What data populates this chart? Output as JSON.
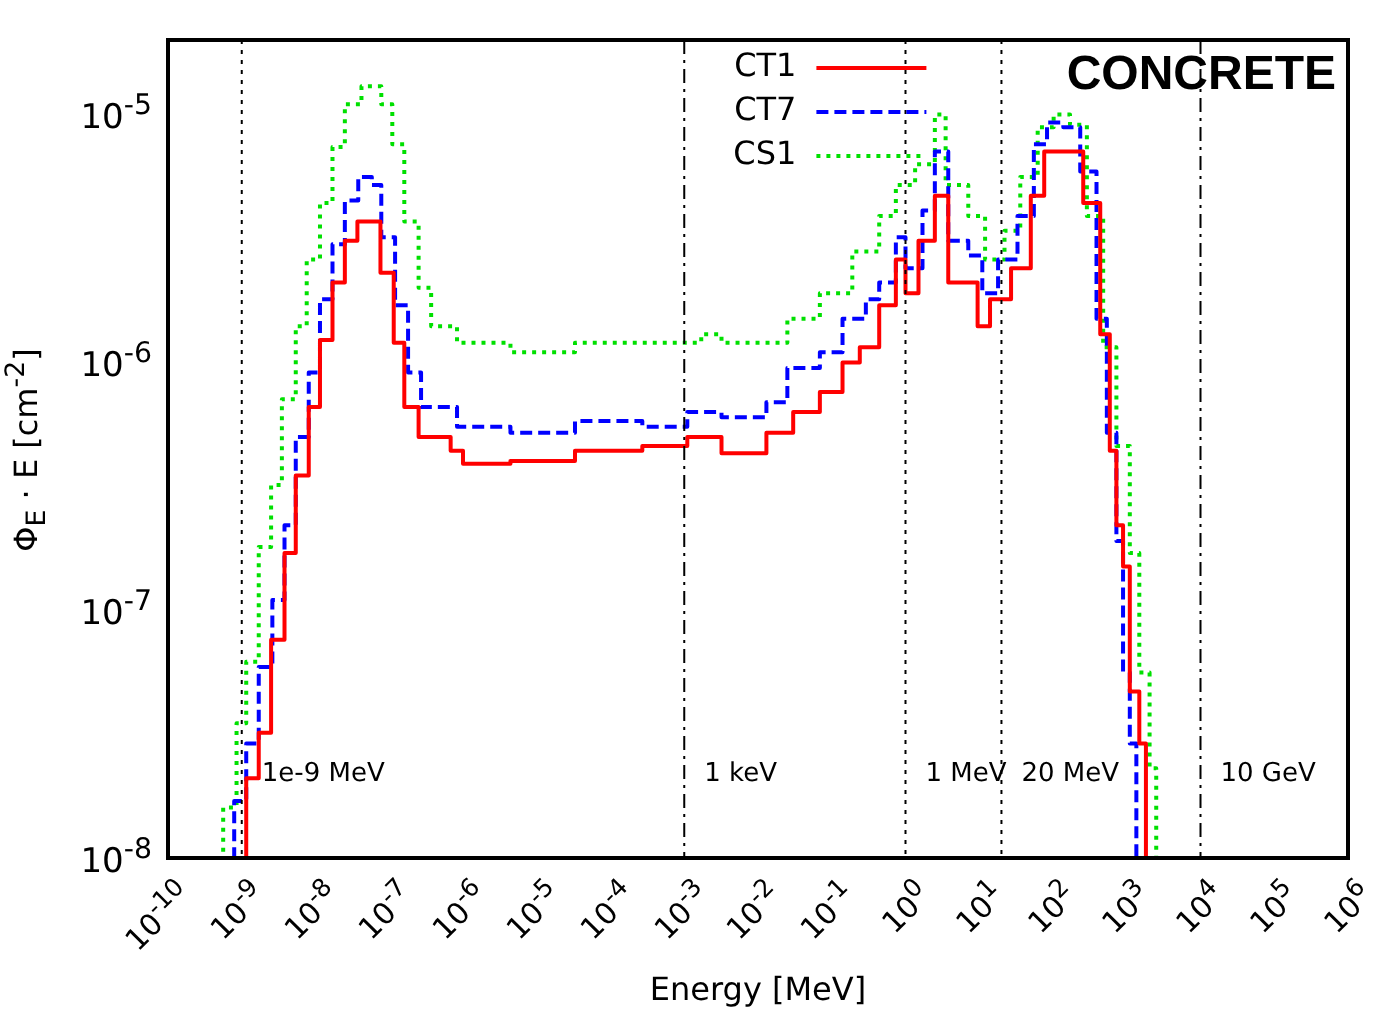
{
  "chart_data": {
    "type": "step",
    "xlabel": "Energy [MeV]",
    "ylabel": "Φ$_{E}$ · E [cm$^{-2}$]",
    "annotations": [
      "CONCRETE"
    ],
    "log": "xy",
    "grid": false,
    "legend": "top",
    "marker": "none",
    "xlim": [
      1e-10,
      1000000.0
    ],
    "ylim": [
      1e-08,
      2e-05
    ],
    "xticks": [
      {
        "value": 1e-10,
        "label": "10$^{-10}$"
      },
      {
        "value": 1e-09,
        "label": "10$^{-9}$"
      },
      {
        "value": 1e-08,
        "label": "10$^{-8}$"
      },
      {
        "value": 1e-07,
        "label": "10$^{-7}$"
      },
      {
        "value": 1e-06,
        "label": "10$^{-6}$"
      },
      {
        "value": 1e-05,
        "label": "10$^{-5}$"
      },
      {
        "value": 0.0001,
        "label": "10$^{-4}$"
      },
      {
        "value": 0.001,
        "label": "10$^{-3}$"
      },
      {
        "value": 0.01,
        "label": "10$^{-2}$"
      },
      {
        "value": 0.1,
        "label": "10$^{-1}$"
      },
      {
        "value": 1,
        "label": "10$^{0}$"
      },
      {
        "value": 10,
        "label": "10$^{1}$"
      },
      {
        "value": 100,
        "label": "10$^{2}$"
      },
      {
        "value": 1000,
        "label": "10$^{3}$"
      },
      {
        "value": 10000.0,
        "label": "10$^{4}$"
      },
      {
        "value": 100000.0,
        "label": "10$^{5}$"
      },
      {
        "value": 1000000.0,
        "label": "10$^{6}$"
      }
    ],
    "yticks": [
      {
        "value": 1e-08,
        "label": "10$^{-8}$"
      },
      {
        "value": 1e-07,
        "label": "10$^{-7}$"
      },
      {
        "value": 1e-06,
        "label": "10$^{-6}$"
      },
      {
        "value": 1e-05,
        "label": "10$^{-5}$"
      }
    ],
    "ref_lines": [
      {
        "axis": "x",
        "value": 1e-09,
        "label": "1e-9 MeV",
        "line_style": "dotted",
        "color": "#000000"
      },
      {
        "axis": "x",
        "value": 0.001,
        "label": "1 keV",
        "line_style": "dashed",
        "color": "#000000"
      },
      {
        "axis": "x",
        "value": 1,
        "label": "1 MeV",
        "line_style": "dotted",
        "color": "#000000"
      },
      {
        "axis": "x",
        "value": 20,
        "label": "20 MeV",
        "line_style": "dotted",
        "color": "#000000"
      },
      {
        "axis": "x",
        "value": 10000.0,
        "label": "10 GeV",
        "line_style": "dashed",
        "color": "#000000"
      }
    ],
    "series": [
      {
        "name": "CT1",
        "color": "#ff0000",
        "line_style": "solid",
        "x": [
          1.15e-09,
          1.15e-09,
          1.7e-09,
          2.5e-09,
          3.8e-09,
          5.4e-09,
          8.1e-09,
          1.15e-08,
          1.7e-08,
          2.5e-08,
          3.7e-08,
          5.2e-08,
          7.6e-08,
          1.15e-07,
          1.6e-07,
          2.5e-07,
          6.8e-07,
          1e-06,
          4.4e-06,
          3.3e-05,
          0.00027,
          0.00091,
          0.0011,
          0.0032,
          0.013,
          0.03,
          0.069,
          0.14,
          0.24,
          0.44,
          0.74,
          1.0,
          1.5,
          2.5,
          3.8,
          6.3,
          9.5,
          14,
          27,
          50,
          76,
          138,
          257,
          437,
          589,
          724,
          891,
          1100,
          1480,
          1820
        ],
        "values": [
          1e-08,
          2.1e-08,
          3.2e-08,
          7.6e-08,
          1.7e-07,
          3.5e-07,
          6.6e-07,
          1.23e-06,
          2.1e-06,
          3.1e-06,
          3.7e-06,
          3.7e-06,
          2.3e-06,
          1.2e-06,
          6.6e-07,
          5e-07,
          4.4e-07,
          3.9e-07,
          4e-07,
          4.4e-07,
          4.6e-07,
          4.6e-07,
          5e-07,
          4.3e-07,
          5.2e-07,
          6.3e-07,
          7.6e-07,
          1e-06,
          1.15e-06,
          1.7e-06,
          2.6e-06,
          1.9e-06,
          3.1e-06,
          4.7e-06,
          2.1e-06,
          2.1e-06,
          1.4e-06,
          1.8e-06,
          2.4e-06,
          4.7e-06,
          7.1e-06,
          7.1e-06,
          4.4e-06,
          1.3e-06,
          4.4e-07,
          2.2e-07,
          1.5e-07,
          4.7e-08,
          2.9e-08,
          1e-08
        ]
      },
      {
        "name": "CT7",
        "color": "#0000ff",
        "line_style": "dashed",
        "x": [
          7.6e-10,
          7.9e-10,
          1.15e-09,
          1.7e-09,
          2.6e-09,
          3.8e-09,
          5.4e-09,
          8.1e-09,
          1.15e-08,
          1.7e-08,
          2.5e-08,
          3.8e-08,
          5.8e-08,
          7.8e-08,
          1.2e-07,
          1.8e-07,
          2.7e-07,
          8.3e-07,
          4.4e-06,
          3.3e-05,
          0.00027,
          0.0011,
          0.0032,
          0.013,
          0.025,
          0.069,
          0.14,
          0.29,
          0.44,
          0.74,
          1.0,
          1.7,
          2.5,
          3.8,
          7.1,
          11,
          18,
          33,
          55,
          83,
          138,
          234,
          389,
          537,
          724,
          891,
          1100,
          1350
        ],
        "values": [
          1e-08,
          1.7e-08,
          2.9e-08,
          5.9e-08,
          1.1e-07,
          2.2e-07,
          5e-07,
          9.1e-07,
          1.8e-06,
          3e-06,
          4.5e-06,
          5.6e-06,
          5.2e-06,
          3.2e-06,
          1.7e-06,
          9.1e-07,
          6.6e-07,
          5.5e-07,
          5.2e-07,
          5.8e-07,
          5.5e-07,
          6.3e-07,
          6e-07,
          6.9e-07,
          9.5e-07,
          1.1e-06,
          1.5e-06,
          1.8e-06,
          2.1e-06,
          3.2e-06,
          2.4e-06,
          4.1e-06,
          7.1e-06,
          3.1e-06,
          2.7e-06,
          1.9e-06,
          2.6e-06,
          3.9e-06,
          7.6e-06,
          9.3e-06,
          8.9e-06,
          5.9e-06,
          1.5e-06,
          5.2e-07,
          1.9e-07,
          5.6e-08,
          2.9e-08,
          1e-08
        ]
      },
      {
        "name": "CS1",
        "color": "#00e000",
        "line_style": "dotted",
        "x": [
          5e-10,
          5.6e-10,
          8.5e-10,
          1.15e-09,
          1.7e-09,
          2.5e-09,
          3.5e-09,
          5.4e-09,
          7.6e-09,
          1.15e-08,
          1.7e-08,
          2.5e-08,
          4.2e-08,
          7.8e-08,
          1.1e-07,
          1.6e-07,
          2.5e-07,
          3.7e-07,
          8.3e-07,
          4.4e-06,
          3.3e-05,
          0.00027,
          0.0017,
          0.0032,
          0.025,
          0.069,
          0.19,
          0.44,
          0.74,
          1.35,
          2.5,
          3.5,
          7.1,
          12,
          22,
          36,
          62,
          102,
          170,
          288,
          479,
          724,
          1100,
          1480,
          2040,
          2510
        ],
        "values": [
          1e-08,
          1.6e-08,
          3.5e-08,
          6.2e-08,
          1.8e-07,
          3.2e-07,
          7.1e-07,
          1.4e-06,
          2.6e-06,
          4.4e-06,
          7.4e-06,
          1.1e-05,
          1.3e-05,
          1.1e-05,
          7.6e-06,
          3.7e-06,
          2e-06,
          1.4e-06,
          1.2e-06,
          1.1e-06,
          1.2e-06,
          1.2e-06,
          1.3e-06,
          1.2e-06,
          1.5e-06,
          1.9e-06,
          2.8e-06,
          3.9e-06,
          5.2e-06,
          6.3e-06,
          1e-05,
          5.2e-06,
          3.9e-06,
          2.6e-06,
          3.4e-06,
          5.6e-06,
          8.9e-06,
          1e-05,
          9.1e-06,
          3.9e-06,
          1.15e-06,
          4.6e-07,
          1.7e-07,
          5.6e-08,
          2.3e-08,
          1e-08
        ]
      }
    ]
  }
}
